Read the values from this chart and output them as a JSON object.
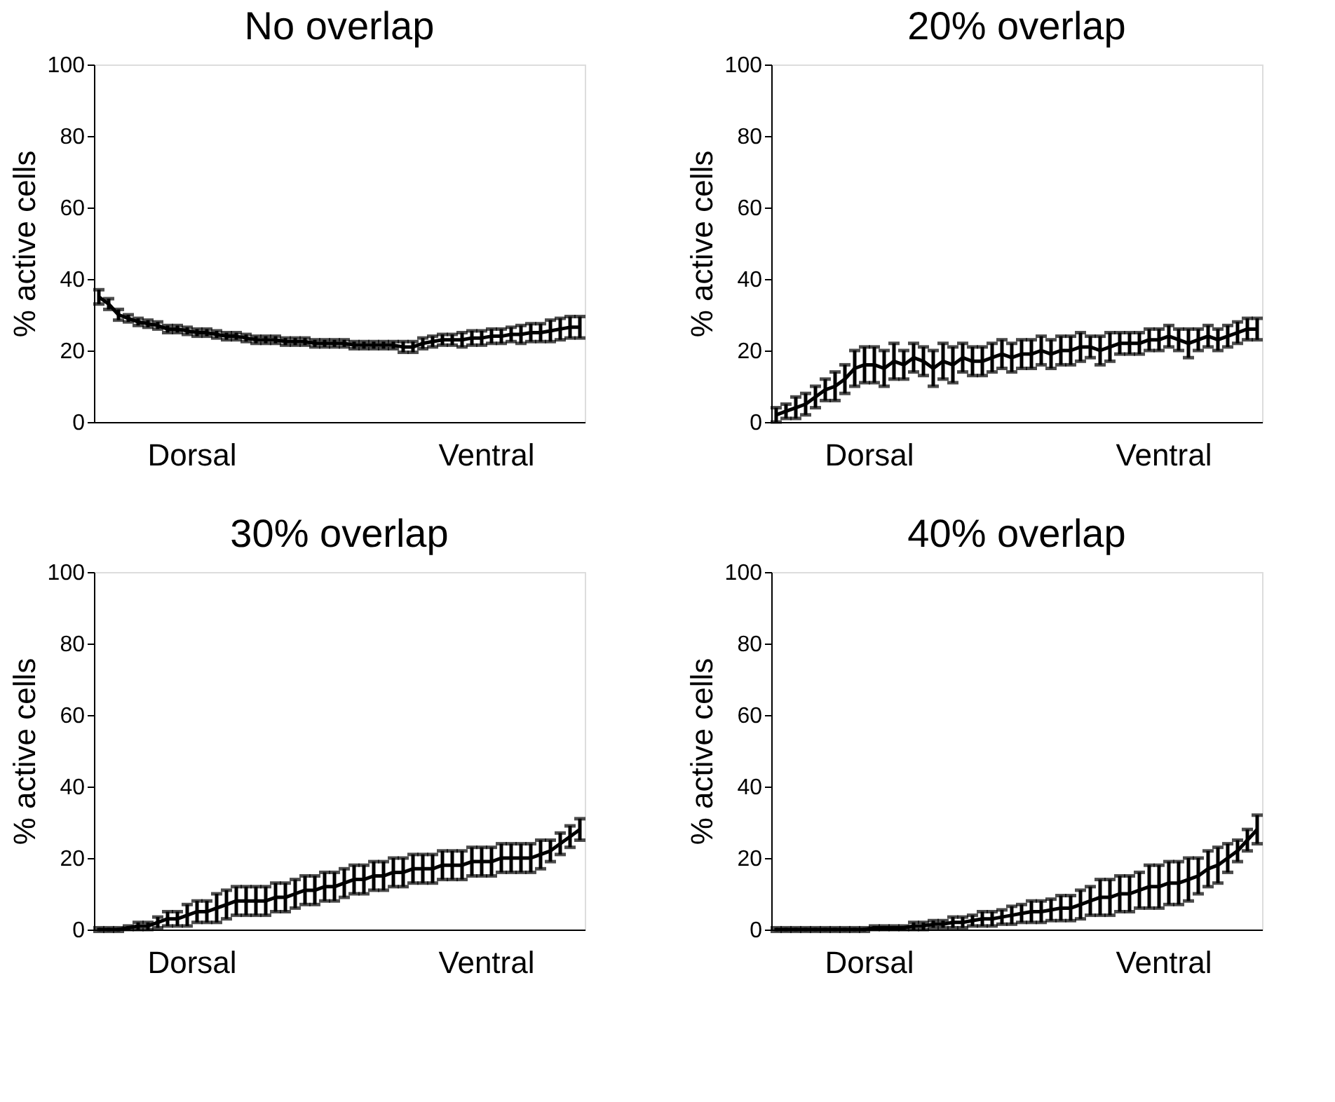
{
  "chart_data": [
    {
      "type": "line",
      "title": "No overlap",
      "ylabel": "% active cells",
      "annotations": [
        "Dorsal",
        "Ventral"
      ],
      "tick_labels": "y",
      "grid": false,
      "marker": "none",
      "ylim": [
        0,
        100
      ],
      "yticks": [
        0,
        20,
        40,
        60,
        80,
        100
      ],
      "categories": [
        null,
        null,
        null,
        null,
        null,
        null,
        null,
        null,
        null,
        null,
        null,
        null,
        null,
        null,
        null,
        null,
        null,
        null,
        null,
        null,
        null,
        null,
        null,
        null,
        null,
        null,
        null,
        null,
        null,
        null,
        null,
        null,
        null,
        null,
        null,
        null,
        null,
        null,
        null,
        null,
        null,
        null,
        null,
        null,
        null,
        null,
        null,
        null,
        null,
        null
      ],
      "series": [
        {
          "color": "#000000",
          "values": [
            35,
            33,
            30,
            29,
            28,
            27.5,
            27,
            26,
            26,
            25.5,
            25,
            25,
            24.5,
            24,
            24,
            23.5,
            23,
            23,
            23,
            22.5,
            22.5,
            22.5,
            22,
            22,
            22,
            22,
            21.5,
            21.5,
            21.5,
            21.5,
            21.5,
            21,
            21,
            22,
            22.5,
            23,
            23,
            23,
            23.5,
            23.5,
            24,
            24,
            24.5,
            24.5,
            25,
            25,
            25.5,
            26,
            26.5,
            26.5
          ],
          "errors": [
            2,
            1.5,
            1.5,
            1,
            1,
            1,
            1,
            1,
            1,
            1,
            1,
            1,
            1,
            1,
            1,
            1,
            1,
            1,
            1,
            1,
            1,
            1,
            1,
            1,
            1,
            1,
            1,
            1,
            1,
            1,
            1,
            1.5,
            1.5,
            1.5,
            1.5,
            1.5,
            1.5,
            2,
            2,
            2,
            2,
            2,
            2,
            2.5,
            2.5,
            2.5,
            3,
            3,
            3,
            3
          ]
        }
      ]
    },
    {
      "type": "line",
      "title": "20% overlap",
      "ylabel": "% active cells",
      "annotations": [
        "Dorsal",
        "Ventral"
      ],
      "tick_labels": "y",
      "grid": false,
      "marker": "none",
      "ylim": [
        0,
        100
      ],
      "yticks": [
        0,
        20,
        40,
        60,
        80,
        100
      ],
      "categories": [
        null,
        null,
        null,
        null,
        null,
        null,
        null,
        null,
        null,
        null,
        null,
        null,
        null,
        null,
        null,
        null,
        null,
        null,
        null,
        null,
        null,
        null,
        null,
        null,
        null,
        null,
        null,
        null,
        null,
        null,
        null,
        null,
        null,
        null,
        null,
        null,
        null,
        null,
        null,
        null,
        null,
        null,
        null,
        null,
        null,
        null,
        null,
        null,
        null,
        null
      ],
      "series": [
        {
          "color": "#000000",
          "values": [
            2,
            3,
            4,
            5,
            7,
            9,
            10,
            12,
            15,
            16,
            16,
            15,
            17,
            16,
            18,
            17,
            15,
            17,
            16,
            18,
            17,
            17,
            18,
            19,
            18,
            19,
            19,
            20,
            19,
            20,
            20,
            21,
            21,
            20,
            21,
            22,
            22,
            22,
            23,
            23,
            24,
            23,
            22,
            23,
            24,
            23,
            24,
            25,
            26,
            26
          ],
          "errors": [
            2,
            2,
            3,
            3,
            3,
            3,
            4,
            4,
            5,
            5,
            5,
            5,
            5,
            4,
            4,
            4,
            5,
            5,
            5,
            4,
            4,
            4,
            4,
            4,
            4,
            4,
            4,
            4,
            4,
            4,
            4,
            4,
            3,
            4,
            4,
            3,
            3,
            3,
            3,
            3,
            3,
            3,
            4,
            3,
            3,
            3,
            3,
            3,
            3,
            3
          ]
        }
      ]
    },
    {
      "type": "line",
      "title": "30% overlap",
      "ylabel": "% active cells",
      "annotations": [
        "Dorsal",
        "Ventral"
      ],
      "tick_labels": "y",
      "grid": false,
      "marker": "none",
      "ylim": [
        0,
        100
      ],
      "yticks": [
        0,
        20,
        40,
        60,
        80,
        100
      ],
      "categories": [
        null,
        null,
        null,
        null,
        null,
        null,
        null,
        null,
        null,
        null,
        null,
        null,
        null,
        null,
        null,
        null,
        null,
        null,
        null,
        null,
        null,
        null,
        null,
        null,
        null,
        null,
        null,
        null,
        null,
        null,
        null,
        null,
        null,
        null,
        null,
        null,
        null,
        null,
        null,
        null,
        null,
        null,
        null,
        null,
        null,
        null,
        null,
        null,
        null,
        null
      ],
      "series": [
        {
          "color": "#000000",
          "values": [
            0,
            0,
            0,
            0.5,
            1,
            1,
            2,
            3,
            3,
            4,
            5,
            5,
            6,
            7,
            8,
            8,
            8,
            8,
            9,
            9,
            10,
            11,
            11,
            12,
            12,
            13,
            14,
            14,
            15,
            15,
            16,
            16,
            17,
            17,
            17,
            18,
            18,
            18,
            19,
            19,
            19,
            20,
            20,
            20,
            20,
            21,
            22,
            24,
            26,
            28
          ],
          "errors": [
            0.5,
            0.5,
            0.5,
            0.5,
            1,
            1,
            1.5,
            2,
            2,
            3,
            3,
            3,
            4,
            4,
            4,
            4,
            4,
            4,
            4,
            4,
            4,
            4,
            4,
            4,
            4,
            4,
            4,
            4,
            4,
            4,
            4,
            4,
            4,
            4,
            4,
            4,
            4,
            4,
            4,
            4,
            4,
            4,
            4,
            4,
            4,
            4,
            3,
            3,
            3,
            3
          ]
        }
      ]
    },
    {
      "type": "line",
      "title": "40% overlap",
      "ylabel": "% active cells",
      "annotations": [
        "Dorsal",
        "Ventral"
      ],
      "tick_labels": "y",
      "grid": false,
      "marker": "none",
      "ylim": [
        0,
        100
      ],
      "yticks": [
        0,
        20,
        40,
        60,
        80,
        100
      ],
      "categories": [
        null,
        null,
        null,
        null,
        null,
        null,
        null,
        null,
        null,
        null,
        null,
        null,
        null,
        null,
        null,
        null,
        null,
        null,
        null,
        null,
        null,
        null,
        null,
        null,
        null,
        null,
        null,
        null,
        null,
        null,
        null,
        null,
        null,
        null,
        null,
        null,
        null,
        null,
        null,
        null,
        null,
        null,
        null,
        null,
        null,
        null,
        null,
        null,
        null,
        null
      ],
      "series": [
        {
          "color": "#000000",
          "values": [
            0,
            0,
            0,
            0,
            0,
            0,
            0,
            0,
            0,
            0,
            0.5,
            0.5,
            0.5,
            0.5,
            1,
            1,
            1.5,
            1.5,
            2,
            2,
            2.5,
            3,
            3,
            3.5,
            4,
            4.5,
            5,
            5,
            5.5,
            6,
            6,
            7,
            8,
            9,
            9,
            10,
            10,
            11,
            12,
            12,
            13,
            13,
            14,
            15,
            17,
            18,
            20,
            22,
            25,
            28
          ],
          "errors": [
            0.5,
            0.5,
            0.5,
            0.5,
            0.5,
            0.5,
            0.5,
            0.5,
            0.5,
            0.5,
            0.5,
            0.5,
            0.5,
            0.5,
            1,
            1,
            1,
            1,
            1.5,
            1.5,
            1.5,
            2,
            2,
            2,
            2.5,
            2.5,
            3,
            3,
            3,
            3.5,
            3.5,
            4,
            4,
            5,
            5,
            5,
            5,
            5,
            6,
            6,
            6,
            6,
            6,
            5,
            5,
            5,
            4,
            3,
            3,
            4
          ]
        }
      ]
    }
  ]
}
